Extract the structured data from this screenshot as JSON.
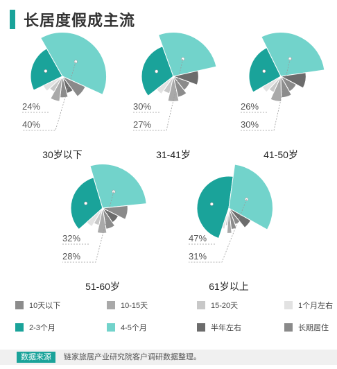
{
  "header": {
    "title": "长居度假成主流"
  },
  "colors": {
    "10天以下": "#8c8c8c",
    "10-15天": "#a9a9a9",
    "15-20天": "#c8c8c8",
    "1个月左右": "#e2e2e2",
    "2-3个月": "#1aa39a",
    "4-5个月": "#72d3cb",
    "半年左右": "#6c6c6c",
    "长期居住": "#8a8a8a"
  },
  "legend": {
    "items": [
      "10天以下",
      "10-15天",
      "15-20天",
      "1个月左右",
      "2-3个月",
      "4-5个月",
      "半年左右",
      "长期居住"
    ]
  },
  "chart_data": {
    "type": "pie",
    "title": "长居度假成主流",
    "style": "rose-pie",
    "categories": [
      "10天以下",
      "10-15天",
      "15-20天",
      "1个月左右",
      "2-3个月",
      "4-5个月",
      "半年左右",
      "长期居住"
    ],
    "groups": [
      {
        "name": "30岁以下",
        "labels": {
          "teal": "24%",
          "light": "40%"
        },
        "slices": [
          {
            "category": "2-3个月",
            "value": 24
          },
          {
            "category": "4-5个月",
            "value": 40
          },
          {
            "category": "长期居住",
            "value": 8
          },
          {
            "category": "半年左右",
            "value": 6
          },
          {
            "category": "10天以下",
            "value": 6
          },
          {
            "category": "10-15天",
            "value": 6
          },
          {
            "category": "15-20天",
            "value": 5
          },
          {
            "category": "1个月左右",
            "value": 5
          }
        ]
      },
      {
        "name": "31-41岁",
        "labels": {
          "teal": "30%",
          "light": "27%"
        },
        "slices": [
          {
            "category": "2-3个月",
            "value": 30
          },
          {
            "category": "4-5个月",
            "value": 27
          },
          {
            "category": "半年左右",
            "value": 9
          },
          {
            "category": "长期居住",
            "value": 9
          },
          {
            "category": "10天以下",
            "value": 7
          },
          {
            "category": "10-15天",
            "value": 7
          },
          {
            "category": "15-20天",
            "value": 6
          },
          {
            "category": "1个月左右",
            "value": 5
          }
        ]
      },
      {
        "name": "41-50岁",
        "labels": {
          "teal": "26%",
          "light": "30%"
        },
        "slices": [
          {
            "category": "2-3个月",
            "value": 26
          },
          {
            "category": "4-5个月",
            "value": 30
          },
          {
            "category": "半年左右",
            "value": 10
          },
          {
            "category": "长期居住",
            "value": 9
          },
          {
            "category": "10天以下",
            "value": 8
          },
          {
            "category": "10-15天",
            "value": 7
          },
          {
            "category": "15-20天",
            "value": 5
          },
          {
            "category": "1个月左右",
            "value": 5
          }
        ]
      },
      {
        "name": "51-60岁",
        "labels": {
          "teal": "32%",
          "light": "28%"
        },
        "slices": [
          {
            "category": "2-3个月",
            "value": 32
          },
          {
            "category": "4-5个月",
            "value": 28
          },
          {
            "category": "长期居住",
            "value": 9
          },
          {
            "category": "半年左右",
            "value": 8
          },
          {
            "category": "10天以下",
            "value": 7
          },
          {
            "category": "10-15天",
            "value": 6
          },
          {
            "category": "15-20天",
            "value": 5
          },
          {
            "category": "1个月左右",
            "value": 5
          }
        ]
      },
      {
        "name": "61岁以上",
        "labels": {
          "teal": "47%",
          "light": "31%"
        },
        "slices": [
          {
            "category": "2-3个月",
            "value": 47
          },
          {
            "category": "4-5个月",
            "value": 31
          },
          {
            "category": "半年左右",
            "value": 6
          },
          {
            "category": "长期居住",
            "value": 5
          },
          {
            "category": "10天以下",
            "value": 4
          },
          {
            "category": "10-15天",
            "value": 3
          },
          {
            "category": "15-20天",
            "value": 2
          },
          {
            "category": "1个月左右",
            "value": 2
          }
        ]
      }
    ]
  },
  "source": {
    "tag": "数据来源",
    "text": "链家旅居产业研究院客户调研数据整理。"
  }
}
